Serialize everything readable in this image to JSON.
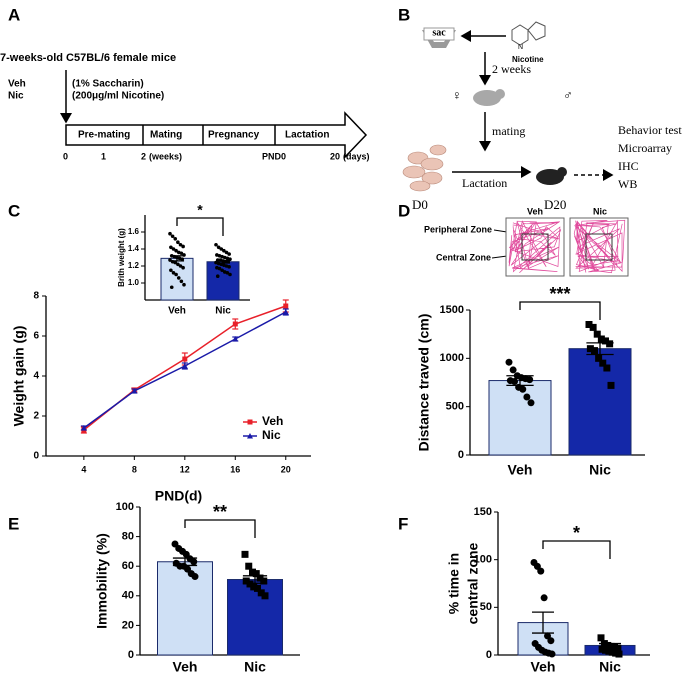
{
  "panel_labels": [
    "A",
    "B",
    "C",
    "D",
    "E",
    "F"
  ],
  "panel_a": {
    "title": "7-weeks-old C57BL/6 female mice",
    "groups": [
      "Veh",
      "Nic"
    ],
    "treatments": [
      "(1%  Saccharin)",
      "(200μg/ml Nicotine)"
    ],
    "phases": [
      "Pre-mating",
      "Mating",
      "Pregnancy",
      "Lactation"
    ],
    "timeline": [
      "0",
      "1",
      "2",
      "(weeks)",
      "PND0",
      "20",
      "(days)"
    ]
  },
  "panel_b": {
    "sac": "sac",
    "nicotine": "Nicotine",
    "duration": "2 weeks",
    "female": "♀",
    "male": "♂",
    "mating": "mating",
    "lactation": "Lactation",
    "start": "D0",
    "end": "D20",
    "assays": [
      "Behavior test",
      "Microarray",
      "IHC",
      "WB"
    ]
  },
  "open_field": {
    "groups": [
      "Veh",
      "Nic"
    ],
    "zones": [
      "Peripheral Zone",
      "Central Zone"
    ]
  },
  "chart_data": [
    {
      "type": "bar",
      "ylabel": "Brith weight (g)",
      "categories": [
        "Veh",
        "Nic"
      ],
      "values": [
        1.29,
        1.25
      ],
      "errors": [
        0.03,
        0.015
      ],
      "colors": [
        "#cfe0f5",
        "#1428a8"
      ],
      "points": [
        [
          1.58,
          1.55,
          1.52,
          1.48,
          1.45,
          1.43,
          1.42,
          1.4,
          1.38,
          1.36,
          1.35,
          1.33,
          1.32,
          1.31,
          1.3,
          1.29,
          1.28,
          1.27,
          1.25,
          1.24,
          1.22,
          1.2,
          1.18,
          1.15,
          1.12,
          1.1,
          1.06,
          1.02,
          0.98,
          0.95
        ],
        [
          1.45,
          1.42,
          1.4,
          1.38,
          1.36,
          1.34,
          1.33,
          1.32,
          1.31,
          1.3,
          1.29,
          1.28,
          1.27,
          1.27,
          1.26,
          1.25,
          1.25,
          1.24,
          1.23,
          1.22,
          1.21,
          1.2,
          1.19,
          1.18,
          1.17,
          1.15,
          1.13,
          1.12,
          1.1,
          1.08
        ]
      ],
      "ylim": [
        0.8,
        1.8
      ],
      "yticks": [
        {
          "value": 1,
          "label": "1.0"
        },
        {
          "value": 1.2,
          "label": "1.2"
        },
        {
          "value": 1.4,
          "label": "1.4"
        },
        {
          "value": 1.6,
          "label": "1.6"
        }
      ],
      "significance": "*"
    },
    {
      "type": "line",
      "xlabel": "PND(d)",
      "ylabel": "Weight gain (g)",
      "x": [
        4,
        8,
        12,
        16,
        20
      ],
      "series": [
        {
          "name": "Veh",
          "color": "#e8202a",
          "values": [
            1.3,
            3.3,
            4.85,
            6.6,
            7.5
          ],
          "errors": [
            0.15,
            0.1,
            0.3,
            0.25,
            0.3
          ]
        },
        {
          "name": "Nic",
          "color": "#1a1aa8",
          "values": [
            1.4,
            3.25,
            4.5,
            5.85,
            7.2
          ],
          "errors": [
            0.1,
            0.1,
            0.15,
            0.1,
            0.15
          ]
        }
      ],
      "xlim": [
        1,
        22
      ],
      "ylim": [
        0,
        8
      ],
      "xticks": [
        4,
        8,
        12,
        16,
        20
      ],
      "yticks": [
        0,
        2,
        4,
        6,
        8
      ],
      "legend": "lower right"
    },
    {
      "type": "bar",
      "ylabel": "Distance traved (cm)",
      "categories": [
        "Veh",
        "Nic"
      ],
      "values": [
        770,
        1100
      ],
      "errors": [
        50,
        60
      ],
      "colors": [
        "#cfe0f5",
        "#1428a8"
      ],
      "points": [
        [
          960,
          880,
          820,
          800,
          790,
          780,
          770,
          760,
          700,
          680,
          600,
          540
        ],
        [
          1350,
          1320,
          1250,
          1200,
          1180,
          1150,
          1100,
          1080,
          1000,
          950,
          900,
          720
        ]
      ],
      "ylim": [
        0,
        1500
      ],
      "yticks": [
        0,
        500,
        1000,
        1500
      ],
      "significance": "***"
    },
    {
      "type": "bar",
      "ylabel": "Immobility (%)",
      "categories": [
        "Veh",
        "Nic"
      ],
      "values": [
        63,
        51
      ],
      "errors": [
        2.5,
        2.5
      ],
      "colors": [
        "#cfe0f5",
        "#1428a8"
      ],
      "points": [
        [
          75,
          72,
          70,
          68,
          65,
          63,
          62,
          60,
          60,
          58,
          55,
          53
        ],
        [
          68,
          60,
          56,
          55,
          52,
          50,
          50,
          48,
          46,
          45,
          42,
          40
        ]
      ],
      "ylim": [
        0,
        100
      ],
      "yticks": [
        0,
        20,
        40,
        60,
        80,
        100
      ],
      "significance": "**"
    },
    {
      "type": "bar",
      "ylabel": [
        "% time in",
        "central zone"
      ],
      "categories": [
        "Veh",
        "Nic"
      ],
      "values": [
        34,
        10
      ],
      "errors": [
        11,
        2
      ],
      "colors": [
        "#cfe0f5",
        "#1428a8"
      ],
      "points": [
        [
          97,
          93,
          88,
          60,
          20,
          15,
          12,
          8,
          5,
          3,
          2,
          1
        ],
        [
          18,
          12,
          10,
          9,
          8,
          7,
          6,
          5,
          4,
          3,
          2,
          1
        ]
      ],
      "ylim": [
        0,
        150
      ],
      "yticks": [
        0,
        50,
        100,
        150
      ],
      "significance": "*"
    }
  ]
}
